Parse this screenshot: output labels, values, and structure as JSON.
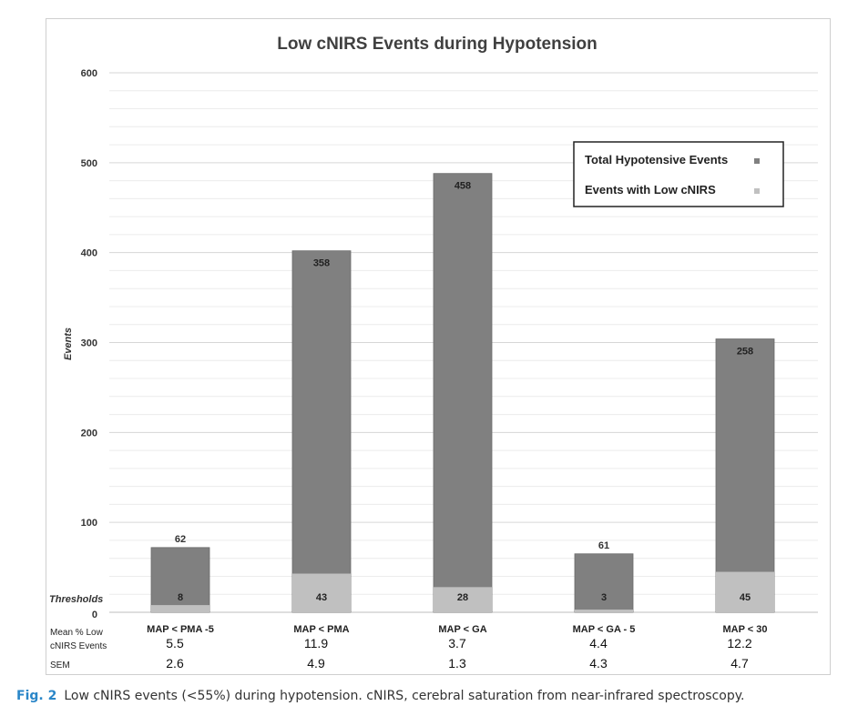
{
  "chart_data": {
    "type": "bar",
    "title": "Low cNIRS Events during Hypotension",
    "ylabel": "Events",
    "ylim": [
      0,
      600
    ],
    "yticks": [
      0,
      100,
      200,
      300,
      400,
      500,
      600
    ],
    "grid": true,
    "legend_position": "top-right",
    "categories": [
      "MAP < PMA -5",
      "MAP < PMA",
      "MAP < GA",
      "MAP < GA - 5",
      "MAP < 30"
    ],
    "series": [
      {
        "name": "Total Hypotensive Events",
        "values": [
          62,
          358,
          458,
          61,
          258
        ],
        "color": "#808080"
      },
      {
        "name": "Events with Low cNIRS",
        "values": [
          8,
          43,
          28,
          3,
          45
        ],
        "color": "#c0c0c0"
      }
    ],
    "bar_tops": [
      72,
      402,
      488,
      65,
      304
    ],
    "thresholds_label": "Thresholds",
    "row_labels": {
      "mean": "Mean % Low cNIRS Events",
      "sem": "SEM"
    },
    "mean_pct_low_cnirs": [
      "5.5",
      "11.9",
      "3.7",
      "4.4",
      "12.2"
    ],
    "sem": [
      "2.6",
      "4.9",
      "1.3",
      "4.3",
      "4.7"
    ]
  },
  "caption": {
    "fig_label": "Fig. 2",
    "text": "Low cNIRS events (<55%) during hypotension. cNIRS, cerebral saturation from near-infrared spectroscopy."
  }
}
